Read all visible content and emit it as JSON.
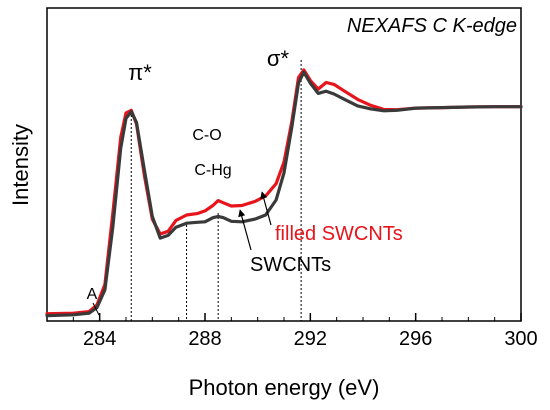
{
  "chart_data": {
    "type": "line",
    "title": "NEXAFS C K-edge",
    "xlabel": "Photon energy (eV)",
    "ylabel": "Intensity",
    "xlim": [
      282,
      300
    ],
    "ylim": [
      0,
      1
    ],
    "grid": false,
    "xticks": [
      284,
      288,
      292,
      296,
      300
    ],
    "xtick_labels": [
      "284",
      "288",
      "292",
      "296",
      "300"
    ],
    "series": [
      {
        "name": "filled SWCNTs",
        "color": "#e8141b",
        "points": [
          [
            282.0,
            0.012
          ],
          [
            283.0,
            0.014
          ],
          [
            283.6,
            0.02
          ],
          [
            283.9,
            0.045
          ],
          [
            284.2,
            0.12
          ],
          [
            284.5,
            0.38
          ],
          [
            284.8,
            0.66
          ],
          [
            285.0,
            0.75
          ],
          [
            285.2,
            0.76
          ],
          [
            285.4,
            0.71
          ],
          [
            285.7,
            0.52
          ],
          [
            286.0,
            0.36
          ],
          [
            286.3,
            0.305
          ],
          [
            286.6,
            0.315
          ],
          [
            286.9,
            0.355
          ],
          [
            287.3,
            0.375
          ],
          [
            287.7,
            0.38
          ],
          [
            288.0,
            0.39
          ],
          [
            288.3,
            0.41
          ],
          [
            288.5,
            0.428
          ],
          [
            288.7,
            0.42
          ],
          [
            289.0,
            0.408
          ],
          [
            289.4,
            0.41
          ],
          [
            289.9,
            0.425
          ],
          [
            290.3,
            0.445
          ],
          [
            290.7,
            0.49
          ],
          [
            291.0,
            0.57
          ],
          [
            291.3,
            0.72
          ],
          [
            291.55,
            0.88
          ],
          [
            291.75,
            0.908
          ],
          [
            292.0,
            0.87
          ],
          [
            292.3,
            0.838
          ],
          [
            292.6,
            0.862
          ],
          [
            292.9,
            0.855
          ],
          [
            293.3,
            0.83
          ],
          [
            293.8,
            0.8
          ],
          [
            294.3,
            0.778
          ],
          [
            294.8,
            0.763
          ],
          [
            295.3,
            0.762
          ],
          [
            296.0,
            0.768
          ],
          [
            297.0,
            0.77
          ],
          [
            298.0,
            0.772
          ],
          [
            299.0,
            0.773
          ],
          [
            300.0,
            0.773
          ]
        ]
      },
      {
        "name": "SWCNTs",
        "color": "#3a3a3a",
        "points": [
          [
            282.0,
            0.005
          ],
          [
            283.0,
            0.008
          ],
          [
            283.6,
            0.014
          ],
          [
            283.9,
            0.035
          ],
          [
            284.2,
            0.1
          ],
          [
            284.5,
            0.33
          ],
          [
            284.8,
            0.62
          ],
          [
            285.0,
            0.73
          ],
          [
            285.2,
            0.755
          ],
          [
            285.4,
            0.715
          ],
          [
            285.7,
            0.54
          ],
          [
            286.0,
            0.37
          ],
          [
            286.3,
            0.29
          ],
          [
            286.6,
            0.3
          ],
          [
            286.9,
            0.33
          ],
          [
            287.3,
            0.345
          ],
          [
            287.7,
            0.348
          ],
          [
            288.0,
            0.35
          ],
          [
            288.3,
            0.365
          ],
          [
            288.5,
            0.37
          ],
          [
            288.7,
            0.365
          ],
          [
            289.0,
            0.352
          ],
          [
            289.4,
            0.35
          ],
          [
            289.9,
            0.36
          ],
          [
            290.3,
            0.375
          ],
          [
            290.7,
            0.43
          ],
          [
            291.0,
            0.53
          ],
          [
            291.3,
            0.7
          ],
          [
            291.55,
            0.86
          ],
          [
            291.75,
            0.9
          ],
          [
            292.0,
            0.86
          ],
          [
            292.3,
            0.822
          ],
          [
            292.6,
            0.83
          ],
          [
            292.9,
            0.82
          ],
          [
            293.3,
            0.8
          ],
          [
            293.8,
            0.776
          ],
          [
            294.3,
            0.765
          ],
          [
            294.8,
            0.758
          ],
          [
            295.3,
            0.76
          ],
          [
            296.0,
            0.768
          ],
          [
            297.0,
            0.77
          ],
          [
            298.0,
            0.772
          ],
          [
            299.0,
            0.773
          ],
          [
            300.0,
            0.773
          ]
        ]
      }
    ],
    "vertical_markers": [
      {
        "x": 285.2,
        "label": "π*"
      },
      {
        "x": 287.3,
        "label": "C-O"
      },
      {
        "x": 288.5,
        "label": "C-Hg"
      },
      {
        "x": 291.65,
        "label": "σ*"
      }
    ],
    "annotations": [
      "A",
      "π*",
      "σ*",
      "C-O",
      "C-Hg",
      "filled SWCNTs",
      "SWCNTs"
    ]
  }
}
